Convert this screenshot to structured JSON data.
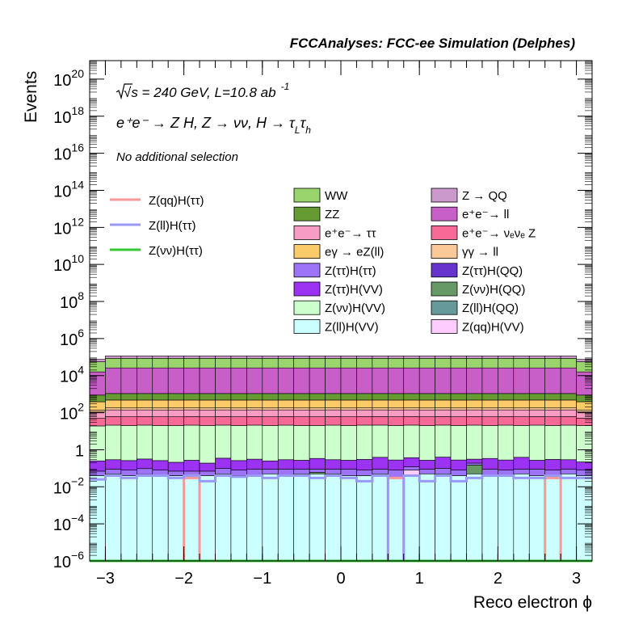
{
  "header": "FCCAnalyses: FCC-ee Simulation (Delphes)",
  "annotations": {
    "line1": "√s = 240 GeV, L=10.8 ab",
    "line1_sup": "-1",
    "line2": "e⁺e⁻ → Z H, Z → νν, H → τ",
    "line2_sub1": "L",
    "line2_tau": "τ",
    "line2_sub2": "h",
    "line3": "No additional selection"
  },
  "colors": {
    "ww": "#99d56c",
    "zz": "#669a33",
    "ee_tautau": "#f79dc4",
    "egamma_eZll": "#fbcb6a",
    "ztt_htt": "#9d74f7",
    "ztt_hvv": "#9c33f3",
    "zvv_hvv": "#ccffcc",
    "zll_hvv": "#ccffff",
    "z_qq": "#cc99cc",
    "ee_ll": "#c85fc8",
    "ee_nunuz": "#f76996",
    "gg_ll": "#fbc898",
    "ztt_hqq": "#6633cc",
    "zvv_hqq": "#669966",
    "zll_hqq": "#669999",
    "zqq_hvv": "#ffccff",
    "sig_qq": "#f99898",
    "sig_ll": "#9999f7",
    "sig_vv": "#33c833"
  },
  "chart_data": {
    "type": "bar",
    "stacked": true,
    "log_y": true,
    "xlabel": "Reco electron ϕ",
    "ylabel": "Events",
    "xlim": [
      -3.2,
      3.2
    ],
    "ylim": [
      1e-06,
      1e+21
    ],
    "x_ticks": [
      "−3",
      "−2",
      "−1",
      "0",
      "1",
      "2",
      "3"
    ],
    "x_tick_values": [
      -3,
      -2,
      -1,
      0,
      1,
      2,
      3
    ],
    "y_ticks": [
      {
        "value": 1e-06,
        "base": "10",
        "exp": "−6"
      },
      {
        "value": 0.0001,
        "base": "10",
        "exp": "−4"
      },
      {
        "value": 0.01,
        "base": "10",
        "exp": "−2"
      },
      {
        "value": 1,
        "base": "1",
        "exp": ""
      },
      {
        "value": 100.0,
        "base": "10",
        "exp": "2"
      },
      {
        "value": 10000.0,
        "base": "10",
        "exp": "4"
      },
      {
        "value": 1000000.0,
        "base": "10",
        "exp": "6"
      },
      {
        "value": 100000000.0,
        "base": "10",
        "exp": "8"
      },
      {
        "value": 10000000000.0,
        "base": "10",
        "exp": "10"
      },
      {
        "value": 1000000000000.0,
        "base": "10",
        "exp": "12"
      },
      {
        "value": 100000000000000.0,
        "base": "10",
        "exp": "14"
      },
      {
        "value": 1e+16,
        "base": "10",
        "exp": "16"
      },
      {
        "value": 1e+18,
        "base": "10",
        "exp": "18"
      },
      {
        "value": 1e+20,
        "base": "10",
        "exp": "20"
      }
    ],
    "bin_edges": [
      -3.2,
      -3.0,
      -2.8,
      -2.6,
      -2.4,
      -2.2,
      -2.0,
      -1.8,
      -1.6,
      -1.4,
      -1.2,
      -1.0,
      -0.8,
      -0.6,
      -0.4,
      -0.2,
      0.0,
      0.2,
      0.4,
      0.6,
      0.8,
      1.0,
      1.2,
      1.4,
      1.6,
      1.8,
      2.0,
      2.2,
      2.4,
      2.6,
      2.8,
      3.0,
      3.2
    ],
    "stack_bottom": 1e-06,
    "stack": [
      {
        "name": "Z(ll)H(VV)",
        "color_key": "zll_hvv",
        "values": [
          0.04,
          0.05,
          0.04,
          0.04,
          0.04,
          0.04,
          0.03,
          0.04,
          0.05,
          0.04,
          0.04,
          0.05,
          0.04,
          0.05,
          0.05,
          0.05,
          0.04,
          0.04,
          0.05,
          0.03,
          0.04,
          0.05,
          0.05,
          0.04,
          0.05,
          0.04,
          0.04,
          0.05,
          0.04,
          0.04,
          0.05,
          0.04
        ]
      },
      {
        "name": "Z(ll)H(QQ)",
        "color_key": "zll_hqq",
        "values": [
          0,
          0,
          0,
          0.006,
          0,
          0,
          0,
          0,
          0,
          0,
          0,
          0,
          0,
          0,
          0,
          0,
          0,
          0,
          0,
          0,
          0,
          0,
          0,
          0,
          0,
          0,
          0,
          0,
          0,
          0,
          0,
          0
        ]
      },
      {
        "name": "Z(ττ)H(QQ)",
        "color_key": "ztt_hqq",
        "values": [
          0,
          0,
          0,
          0,
          0,
          5e-05,
          0,
          0,
          0,
          0,
          0,
          0,
          0,
          0,
          0,
          0,
          0,
          0,
          0,
          0,
          0,
          0,
          0,
          0,
          0,
          0,
          0,
          0,
          0,
          0,
          0,
          0
        ]
      },
      {
        "name": "Z(νν)H(QQ)",
        "color_key": "zvv_hqq",
        "values": [
          0,
          0,
          0,
          0,
          0,
          0,
          0,
          0,
          0,
          0,
          0,
          0,
          0,
          0,
          0.01,
          0,
          0,
          0,
          0,
          0,
          0,
          0,
          0,
          0,
          0.1,
          0,
          0,
          0,
          0,
          0,
          0,
          0
        ]
      },
      {
        "name": "Z(qq)H(VV)",
        "color_key": "zqq_hvv",
        "values": [
          0,
          0,
          0,
          0,
          0,
          0,
          0,
          0,
          0,
          0,
          0,
          0,
          0,
          0,
          0,
          0,
          0,
          0,
          0,
          0,
          0.04,
          0,
          0,
          0,
          0,
          0,
          0,
          0,
          0,
          0,
          0,
          0
        ]
      },
      {
        "name": "Z(ττ)H(ττ)",
        "color_key": "ztt_htt",
        "values": [
          0.03,
          0.04,
          0.04,
          0.05,
          0.04,
          0.03,
          0.04,
          0.03,
          0.05,
          0.04,
          0.05,
          0.04,
          0.05,
          0.04,
          0.03,
          0.04,
          0.05,
          0.04,
          0.04,
          0.05,
          0.04,
          0.04,
          0.05,
          0.04,
          0.04,
          0.05,
          0.04,
          0.04,
          0.05,
          0.04,
          0.04,
          0.04
        ]
      },
      {
        "name": "Z(ττ)H(VV)",
        "color_key": "ztt_hvv",
        "values": [
          0.18,
          0.2,
          0.18,
          0.22,
          0.18,
          0.14,
          0.2,
          0.12,
          0.25,
          0.18,
          0.22,
          0.16,
          0.2,
          0.18,
          0.25,
          0.2,
          0.18,
          0.22,
          0.3,
          0.2,
          0.25,
          0.18,
          0.3,
          0.2,
          0.12,
          0.25,
          0.2,
          0.3,
          0.18,
          0.22,
          0.2,
          0.14
        ]
      },
      {
        "name": "Z(νν)H(VV)",
        "color_key": "zvv_hvv",
        "values": [
          19,
          21,
          20,
          21,
          20,
          20,
          21,
          20,
          21,
          20,
          21,
          20,
          21,
          20,
          20,
          21,
          20,
          21,
          21,
          20,
          21,
          20,
          21,
          20,
          21,
          20,
          21,
          20,
          21,
          20,
          21,
          20
        ]
      },
      {
        "name": "e⁺e⁻→ νₑνₑ Z",
        "color_key": "ee_nunuz",
        "values": [
          30,
          40,
          40,
          40,
          40,
          40,
          40,
          40,
          40,
          40,
          40,
          40,
          40,
          40,
          40,
          40,
          40,
          40,
          40,
          40,
          40,
          40,
          40,
          40,
          40,
          40,
          40,
          40,
          40,
          40,
          40,
          30
        ]
      },
      {
        "name": "e⁺e⁻→ ττ",
        "color_key": "ee_tautau",
        "values": [
          60,
          80,
          80,
          80,
          80,
          80,
          80,
          80,
          80,
          80,
          80,
          80,
          80,
          80,
          80,
          80,
          80,
          80,
          80,
          80,
          80,
          80,
          80,
          80,
          80,
          80,
          80,
          80,
          80,
          80,
          80,
          60
        ]
      },
      {
        "name": "γγ → ll",
        "color_key": "gg_ll",
        "values": [
          30,
          40,
          40,
          40,
          40,
          40,
          40,
          40,
          40,
          40,
          40,
          40,
          40,
          40,
          40,
          40,
          40,
          40,
          40,
          40,
          40,
          40,
          40,
          40,
          40,
          40,
          40,
          40,
          40,
          40,
          40,
          30
        ]
      },
      {
        "name": "eγ → eZ(ll)",
        "color_key": "egamma_eZll",
        "values": [
          250,
          300,
          300,
          300,
          300,
          300,
          300,
          300,
          300,
          300,
          300,
          300,
          300,
          300,
          300,
          300,
          300,
          300,
          300,
          300,
          300,
          300,
          300,
          300,
          300,
          300,
          300,
          300,
          300,
          300,
          300,
          250
        ]
      },
      {
        "name": "ZZ",
        "color_key": "zz",
        "values": [
          500,
          600,
          600,
          600,
          600,
          600,
          600,
          600,
          600,
          600,
          600,
          600,
          600,
          600,
          600,
          600,
          600,
          600,
          600,
          600,
          600,
          600,
          600,
          600,
          600,
          600,
          600,
          600,
          600,
          600,
          600,
          500
        ]
      },
      {
        "name": "e⁺e⁻→ ll",
        "color_key": "ee_ll",
        "values": [
          15000,
          25000,
          25000,
          25000,
          25000,
          25000,
          25000,
          25000,
          25000,
          25000,
          25000,
          25000,
          25000,
          25000,
          25000,
          25000,
          25000,
          25000,
          25000,
          25000,
          25000,
          25000,
          25000,
          25000,
          25000,
          25000,
          25000,
          25000,
          25000,
          25000,
          25000,
          15000
        ]
      },
      {
        "name": "WW",
        "color_key": "ww",
        "values": [
          40000,
          60000,
          60000,
          60000,
          60000,
          60000,
          60000,
          60000,
          60000,
          60000,
          60000,
          60000,
          60000,
          60000,
          60000,
          60000,
          60000,
          60000,
          60000,
          60000,
          60000,
          60000,
          60000,
          60000,
          60000,
          60000,
          60000,
          60000,
          60000,
          60000,
          60000,
          40000
        ]
      },
      {
        "name": "Z → QQ",
        "color_key": "z_qq",
        "values": [
          20000,
          30000,
          30000,
          30000,
          30000,
          30000,
          30000,
          30000,
          30000,
          30000,
          30000,
          30000,
          30000,
          30000,
          30000,
          30000,
          30000,
          30000,
          30000,
          30000,
          30000,
          30000,
          30000,
          30000,
          30000,
          30000,
          30000,
          30000,
          30000,
          30000,
          30000,
          20000
        ]
      }
    ],
    "signals": [
      {
        "name": "Z(qq)H(ττ)",
        "color_key": "sig_qq",
        "values": [
          0,
          0,
          0,
          0,
          0,
          0,
          0.03,
          0,
          0,
          0,
          0,
          0,
          0,
          0,
          0,
          0,
          0,
          0,
          0,
          0.03,
          0,
          0,
          0,
          0,
          0,
          0,
          0,
          0,
          0,
          0.03,
          0,
          0
        ]
      },
      {
        "name": "Z(ll)H(ττ)",
        "color_key": "sig_ll",
        "values": [
          0.025,
          0.04,
          0.03,
          0.04,
          0.04,
          0.03,
          0.04,
          0.02,
          0.04,
          0.035,
          0.04,
          0.03,
          0.04,
          0.04,
          0.03,
          0.04,
          0.03,
          0.02,
          0.04,
          0,
          0.04,
          0.02,
          0.04,
          0.02,
          0.03,
          0.04,
          0.04,
          0.03,
          0.03,
          0.04,
          0.03,
          0.03
        ]
      },
      {
        "name": "Z(νν)H(ττ)",
        "color_key": "sig_vv",
        "values": [
          0,
          0,
          0,
          0,
          0,
          0,
          0,
          0,
          0,
          0,
          0,
          0,
          0,
          0,
          0,
          0,
          0,
          0,
          0,
          0,
          0,
          0,
          0,
          0,
          0,
          0,
          0,
          0,
          0,
          0,
          0,
          0
        ]
      }
    ],
    "legend_signals": [
      {
        "name": "Z(qq)H(ττ)",
        "color_key": "sig_qq"
      },
      {
        "name": "Z(ll)H(ττ)",
        "color_key": "sig_ll"
      },
      {
        "name": "Z(νν)H(ττ)",
        "color_key": "sig_vv"
      }
    ],
    "legend_bkg_col1": [
      {
        "name": "WW",
        "color_key": "ww"
      },
      {
        "name": "ZZ",
        "color_key": "zz"
      },
      {
        "name": "e⁺e⁻→ ττ",
        "color_key": "ee_tautau"
      },
      {
        "name": "eγ → eZ(ll)",
        "color_key": "egamma_eZll"
      },
      {
        "name": "Z(ττ)H(ττ)",
        "color_key": "ztt_htt"
      },
      {
        "name": "Z(ττ)H(VV)",
        "color_key": "ztt_hvv"
      },
      {
        "name": "Z(νν)H(VV)",
        "color_key": "zvv_hvv"
      },
      {
        "name": "Z(ll)H(VV)",
        "color_key": "zll_hvv"
      }
    ],
    "legend_bkg_col2": [
      {
        "name": "Z → QQ",
        "color_key": "z_qq"
      },
      {
        "name": "e⁺e⁻→ ll",
        "color_key": "ee_ll"
      },
      {
        "name": "e⁺e⁻→ νₑνₑ Z",
        "color_key": "ee_nunuz"
      },
      {
        "name": "γγ → ll",
        "color_key": "gg_ll"
      },
      {
        "name": "Z(ττ)H(QQ)",
        "color_key": "ztt_hqq"
      },
      {
        "name": "Z(νν)H(QQ)",
        "color_key": "zvv_hqq"
      },
      {
        "name": "Z(ll)H(QQ)",
        "color_key": "zll_hqq"
      },
      {
        "name": "Z(qq)H(VV)",
        "color_key": "zqq_hvv"
      }
    ],
    "legend_placement": "top",
    "grid": false
  }
}
